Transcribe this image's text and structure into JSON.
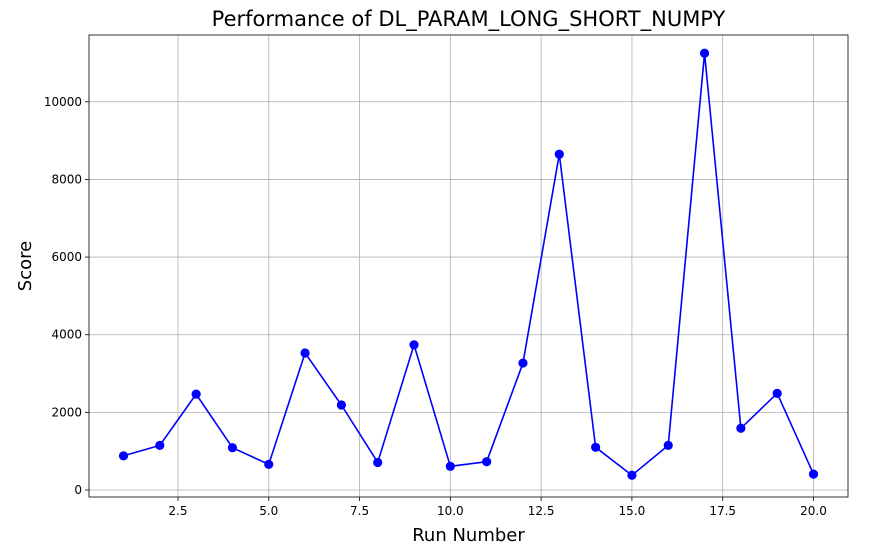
{
  "chart_data": {
    "type": "line",
    "title": "Performance of DL_PARAM_LONG_SHORT_NUMPY",
    "xlabel": "Run Number",
    "ylabel": "Score",
    "xlim": [
      0.05,
      20.95
    ],
    "ylim": [
      -180,
      11720
    ],
    "xticks": [
      2.5,
      5.0,
      7.5,
      10.0,
      12.5,
      15.0,
      17.5,
      20.0
    ],
    "xtick_labels": [
      "2.5",
      "5.0",
      "7.5",
      "10.0",
      "12.5",
      "15.0",
      "17.5",
      "20.0"
    ],
    "yticks": [
      0,
      2000,
      4000,
      6000,
      8000,
      10000
    ],
    "ytick_labels": [
      "0",
      "2000",
      "4000",
      "6000",
      "8000",
      "10000"
    ],
    "grid": true,
    "legend": "none",
    "series": [
      {
        "color": "#0000ff",
        "marker": "circle",
        "x": [
          1,
          2,
          3,
          4,
          5,
          6,
          7,
          8,
          9,
          10,
          11,
          12,
          13,
          14,
          15,
          16,
          17,
          18,
          19,
          20
        ],
        "y": [
          880,
          1150,
          2470,
          1090,
          660,
          3530,
          2190,
          710,
          3740,
          610,
          730,
          3270,
          8650,
          1100,
          380,
          1150,
          11250,
          1590,
          2490,
          410
        ]
      }
    ]
  }
}
